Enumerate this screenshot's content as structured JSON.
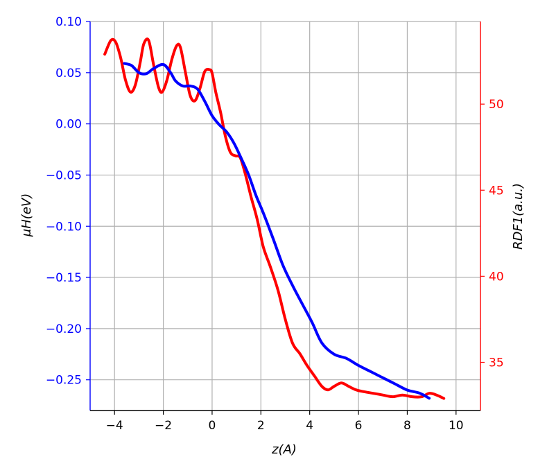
{
  "chart_data": {
    "type": "line",
    "title": "",
    "xlabel": "z(A)",
    "ylabel_left": "μH(eV)",
    "ylabel_right": "RDF1(a.u.)",
    "xlim": [
      -5,
      11
    ],
    "ylim_left": [
      -0.28,
      0.1
    ],
    "ylim_right": [
      32.2,
      54.8
    ],
    "grid": true,
    "legend": "none",
    "x_ticks": [
      -4,
      -2,
      0,
      2,
      4,
      6,
      8,
      10
    ],
    "x_tick_labels": [
      "−4",
      "−2",
      "0",
      "2",
      "4",
      "6",
      "8",
      "10"
    ],
    "y_left_ticks": [
      0.1,
      0.05,
      0.0,
      -0.05,
      -0.1,
      -0.15,
      -0.2,
      -0.25
    ],
    "y_left_tick_labels": [
      "0.10",
      "0.05",
      "0.00",
      "−0.05",
      "−0.10",
      "−0.15",
      "−0.20",
      "−0.25"
    ],
    "y_right_ticks": [
      35,
      40,
      45,
      50
    ],
    "y_right_tick_labels": [
      "35",
      "40",
      "45",
      "50"
    ],
    "colors": {
      "left_axis": "#0000ff",
      "right_axis": "#ff0000",
      "grid": "#b0b0b0"
    },
    "series": [
      {
        "axis": "left",
        "color": "#0000ff",
        "x": [
          -3.6,
          -3.3,
          -3.0,
          -2.7,
          -2.4,
          -2.0,
          -1.7,
          -1.5,
          -1.2,
          -0.9,
          -0.6,
          -0.3,
          0.0,
          0.3,
          0.6,
          0.9,
          1.2,
          1.5,
          1.8,
          2.1,
          2.5,
          2.9,
          3.3,
          3.7,
          4.1,
          4.5,
          5.0,
          5.5,
          6.0,
          6.5,
          7.0,
          7.5,
          8.0,
          8.5,
          8.9
        ],
        "values": [
          0.059,
          0.057,
          0.05,
          0.049,
          0.054,
          0.058,
          0.05,
          0.042,
          0.037,
          0.037,
          0.034,
          0.022,
          0.008,
          -0.001,
          -0.008,
          -0.019,
          -0.034,
          -0.05,
          -0.07,
          -0.087,
          -0.112,
          -0.138,
          -0.158,
          -0.176,
          -0.194,
          -0.214,
          -0.225,
          -0.229,
          -0.236,
          -0.242,
          -0.248,
          -0.254,
          -0.26,
          -0.263,
          -0.268
        ]
      },
      {
        "axis": "right",
        "color": "#ff0000",
        "x": [
          -4.4,
          -4.15,
          -3.95,
          -3.75,
          -3.55,
          -3.35,
          -3.15,
          -2.95,
          -2.8,
          -2.6,
          -2.4,
          -2.2,
          -2.05,
          -1.85,
          -1.65,
          -1.45,
          -1.3,
          -1.1,
          -0.9,
          -0.7,
          -0.5,
          -0.3,
          -0.1,
          0.0,
          0.15,
          0.35,
          0.55,
          0.75,
          0.95,
          1.15,
          1.35,
          1.6,
          1.85,
          2.1,
          2.4,
          2.7,
          3.0,
          3.3,
          3.6,
          3.9,
          4.2,
          4.5,
          4.75,
          5.0,
          5.3,
          5.6,
          5.9,
          6.2,
          6.6,
          7.0,
          7.4,
          7.8,
          8.2,
          8.6,
          8.9,
          9.2,
          9.5
        ],
        "values": [
          52.9,
          53.7,
          53.6,
          52.7,
          51.4,
          50.7,
          51.1,
          52.4,
          53.5,
          53.7,
          52.3,
          51.0,
          50.7,
          51.4,
          52.6,
          53.4,
          53.3,
          51.9,
          50.5,
          50.2,
          50.9,
          51.9,
          52.0,
          51.8,
          50.7,
          49.5,
          48.1,
          47.2,
          47.0,
          46.9,
          46.0,
          44.6,
          43.3,
          41.7,
          40.5,
          39.2,
          37.5,
          36.1,
          35.5,
          34.8,
          34.2,
          33.6,
          33.4,
          33.6,
          33.8,
          33.6,
          33.4,
          33.3,
          33.2,
          33.1,
          33.0,
          33.1,
          33.0,
          33.0,
          33.2,
          33.1,
          32.9
        ]
      }
    ]
  }
}
